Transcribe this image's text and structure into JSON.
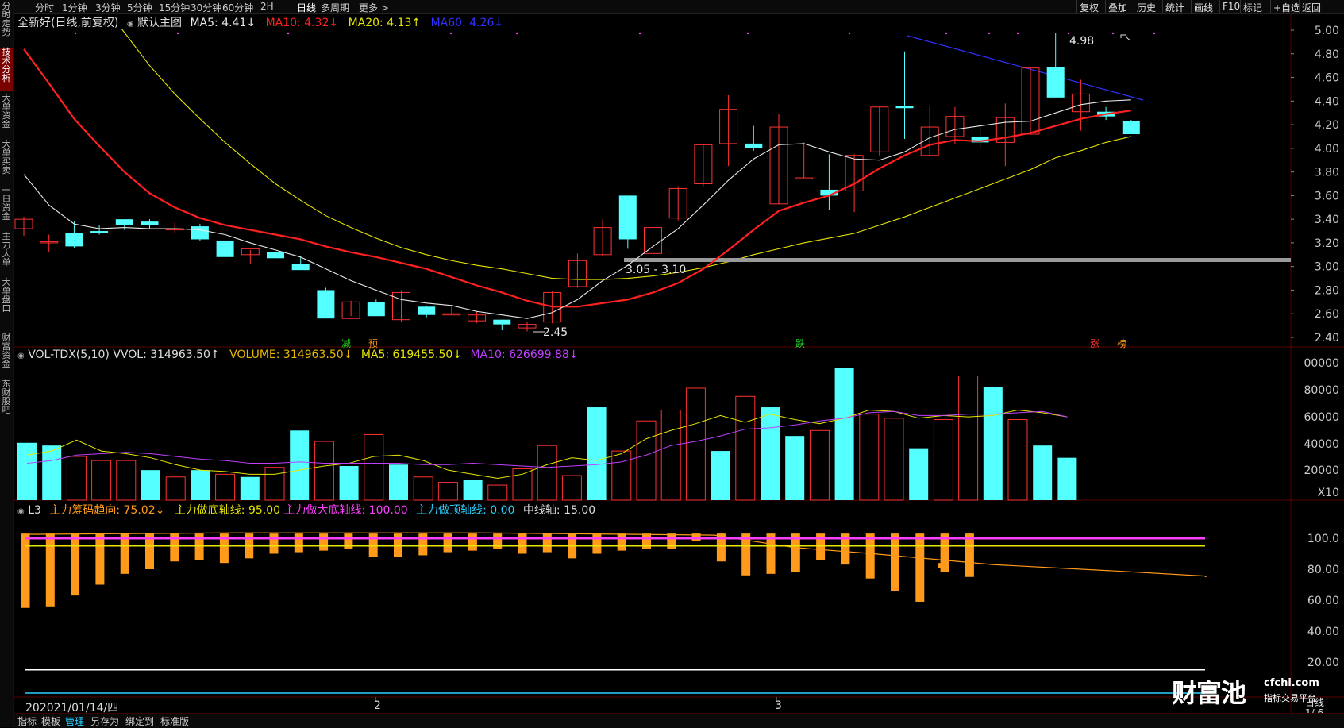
{
  "sidebar": [
    {
      "label": "分时走势",
      "active": false
    },
    {
      "label": "技术分析",
      "active": true
    },
    {
      "label": "大单资金",
      "active": false
    },
    {
      "label": "大单买卖",
      "active": false
    },
    {
      "label": "一日资金",
      "active": false
    },
    {
      "label": "主力大单",
      "active": false
    },
    {
      "label": "大单盘口",
      "active": false
    },
    {
      "label": "财富资金",
      "active": false
    },
    {
      "label": "东财股吧",
      "active": false
    }
  ],
  "periods": [
    "分时",
    "1分钟",
    "3分钟",
    "5分钟",
    "15分钟",
    "30分钟",
    "60分钟",
    "2H",
    "日线",
    "多周期",
    "更多 >"
  ],
  "active_period": "日线",
  "toolbar_right": [
    "复权",
    "叠加",
    "历史",
    "统计",
    "画线",
    "F10",
    "标记",
    "+自选",
    "返回"
  ],
  "main_legend": {
    "title": "全新好(日线,前复权)",
    "template_icon": "gear-dot-icon",
    "template": "默认主图",
    "ma5": "MA5: 4.41↓",
    "ma10": "MA10: 4.32↓",
    "ma20": "MA20: 4.13↑",
    "ma60": "MA60: 4.26↓"
  },
  "price_axis": [
    "5.00",
    "4.80",
    "4.60",
    "4.40",
    "4.20",
    "4.00",
    "3.80",
    "3.60",
    "3.40",
    "3.20",
    "3.00",
    "2.80",
    "2.60",
    "2.40"
  ],
  "annotations": {
    "high": "4.98",
    "low": "2.45",
    "range": "3.05 - 3.10",
    "markers": [
      "减",
      "预",
      "跌",
      "涨",
      "榜"
    ]
  },
  "vol_legend": {
    "name": "VOL-TDX(5,10)",
    "vvol": "VVOL: 314963.50↑",
    "volume": "VOLUME: 314963.50↓",
    "ma5": "MA5: 619455.50↓",
    "ma10": "MA10: 626699.88↓"
  },
  "vol_axis": [
    "00000",
    "80000",
    "60000",
    "40000",
    "20000",
    "X10"
  ],
  "l3_legend": {
    "name": "L3",
    "trend": "主力筹码趋向: 75.02↓",
    "bottom": "主力做底轴线: 95.00",
    "big_bottom": "主力做大底轴线: 100.00",
    "top": "主力做顶轴线: 0.00",
    "mid": "中线轴: 15.00"
  },
  "l3_axis": [
    "100.0",
    "80.00",
    "60.00",
    "40.00",
    "20.00"
  ],
  "date_axis": {
    "cursor": "202021/01/14/四",
    "m2": "2",
    "m3": "3"
  },
  "bottom_tabs": [
    "指标",
    "模板",
    "管理",
    "另存为",
    "绑定到",
    "标准版"
  ],
  "bottom_active": "管理",
  "watermark": {
    "logo": "财富池",
    "url": "cfchi.com",
    "sub": "指标交易平台"
  },
  "corner": [
    "日线",
    "1/ 6"
  ],
  "colors": {
    "up": "#ff3232",
    "down": "#54ffff",
    "ma5": "#e8e8e8",
    "ma10": "#ff2020",
    "ma20": "#e6e600",
    "ma60": "#3030ff",
    "vol_ma5": "#e6e600",
    "vol_ma10": "#c040ff",
    "l3_bar": "#ff9a1a",
    "magenta": "#ff40ff",
    "cyan": "#2ad0ff"
  }
}
